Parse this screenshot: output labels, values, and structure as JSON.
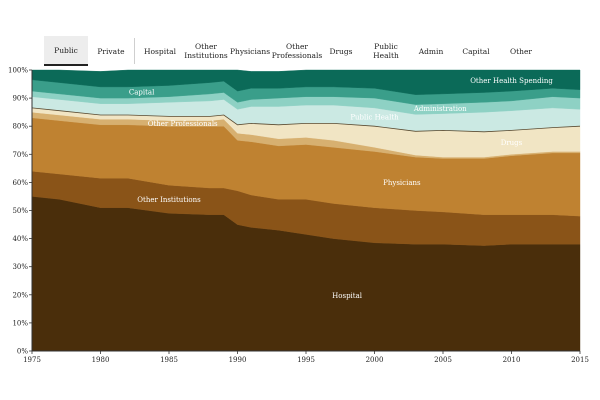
{
  "tabs": {
    "group_a": [
      "Public",
      "Private"
    ],
    "group_b": [
      "Hospital",
      "Other Institutions",
      "Physicians",
      "Other Professionals",
      "Drugs",
      "Public Health",
      "Admin",
      "Capital",
      "Other"
    ],
    "active": "Public"
  },
  "chart_data": {
    "type": "area",
    "stacked": true,
    "x": [
      1975,
      1977,
      1980,
      1982,
      1985,
      1988,
      1989,
      1990,
      1991,
      1993,
      1995,
      1997,
      2000,
      2003,
      2005,
      2008,
      2010,
      2013,
      2015
    ],
    "xticks": [
      "1975",
      "1980",
      "1985",
      "1990",
      "1995",
      "2000",
      "2005",
      "2010",
      "2015"
    ],
    "yticks": [
      "0%",
      "10%",
      "20%",
      "30%",
      "40%",
      "50%",
      "60%",
      "70%",
      "80%",
      "90%",
      "100%"
    ],
    "ylim": [
      0,
      100
    ],
    "series": [
      {
        "name": "Hospital",
        "color": "#4a2e0b",
        "label_color": "#ffffff",
        "values": [
          55,
          54,
          51,
          51,
          49,
          48.5,
          48.5,
          45,
          44,
          43,
          41.5,
          40,
          38.5,
          38,
          38,
          37.5,
          38,
          38,
          38
        ]
      },
      {
        "name": "Other Institutions",
        "color": "#8a5418",
        "label_color": "#ffffff",
        "values": [
          9,
          9,
          10.5,
          10.5,
          10,
          9.5,
          9.5,
          12,
          11.5,
          11,
          12.5,
          12.5,
          12.5,
          12,
          11.5,
          11,
          10.5,
          10.5,
          10
        ]
      },
      {
        "name": "Physicians",
        "color": "#bf8231",
        "label_color": "#ffffff",
        "values": [
          19,
          19,
          19,
          19,
          21,
          22,
          22,
          18,
          19,
          19,
          19.5,
          20,
          20,
          19,
          19,
          20,
          21,
          22,
          22.5
        ]
      },
      {
        "name": "Other Professionals",
        "color": "#d7b070",
        "label_color": "#ffffff",
        "values": [
          2,
          2,
          2,
          2,
          2,
          2,
          2.5,
          2.5,
          2.5,
          2.5,
          2.5,
          2.5,
          1.5,
          0.7,
          0.5,
          0.5,
          0.5,
          0.5,
          0.5
        ]
      },
      {
        "name": "Drugs",
        "color": "#f1e5c4",
        "label_color": "#ffffff",
        "values": [
          1.5,
          1.5,
          1.5,
          1.5,
          1.5,
          1.5,
          1.5,
          3,
          4,
          5,
          5,
          6,
          7.5,
          8.5,
          9.5,
          9,
          8.5,
          8.5,
          9
        ]
      },
      {
        "name": "Public Health",
        "color": "#cbe9e3",
        "label_color": "#ffffff",
        "values": [
          4,
          4,
          4,
          4,
          5,
          5.5,
          5.5,
          5.5,
          6,
          6.5,
          6.5,
          6.5,
          6.5,
          6,
          6,
          7,
          7,
          7,
          6
        ]
      },
      {
        "name": "Administration",
        "color": "#8ed1c4",
        "label_color": "#ffffff",
        "values": [
          2,
          2,
          2,
          2,
          2,
          2.5,
          2.5,
          2.5,
          2.5,
          3,
          3,
          3,
          3.5,
          3.5,
          3.5,
          3.5,
          3.5,
          4,
          4
        ]
      },
      {
        "name": "Capital",
        "color": "#3a9e8a",
        "label_color": "#ffffff",
        "values": [
          4,
          4,
          4,
          4,
          4,
          4,
          4,
          4,
          4,
          3.5,
          3.5,
          3.5,
          3.5,
          3.5,
          3.5,
          3.5,
          3.5,
          3,
          3
        ]
      },
      {
        "name": "Other Health Spending",
        "color": "#0b6a58",
        "label_color": "#ffffff",
        "values": [
          3.5,
          4.5,
          5.5,
          6,
          5.5,
          4.5,
          4,
          7.5,
          6,
          6,
          6,
          6,
          6.5,
          8.8,
          8.5,
          8,
          7.5,
          6.5,
          7
        ]
      }
    ],
    "labels": [
      {
        "text": "Hospital",
        "series": "Hospital",
        "x": 1975
      },
      {
        "text": "Other Institutions",
        "series": "Other Institutions"
      },
      {
        "text": "Physicians",
        "series": "Physicians"
      },
      {
        "text": "Other Professionals",
        "series": "Other Professionals"
      },
      {
        "text": "Drugs",
        "series": "Drugs"
      },
      {
        "text": "Public Health",
        "series": "Public Health"
      },
      {
        "text": "Administration",
        "series": "Administration"
      },
      {
        "text": "Capital",
        "series": "Capital"
      },
      {
        "text": "Other Health Spending",
        "series": "Other Health Spending"
      }
    ]
  }
}
